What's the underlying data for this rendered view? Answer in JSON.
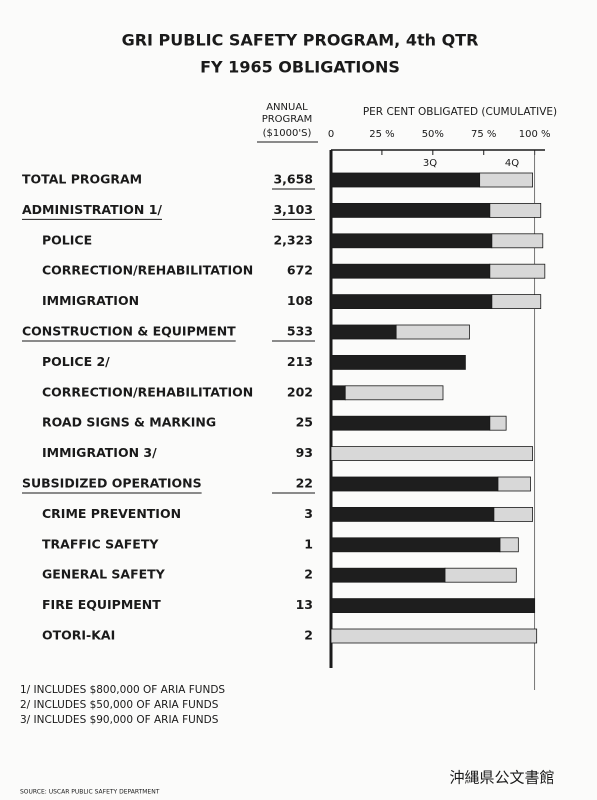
{
  "chart_data": {
    "type": "stacked-bar",
    "title": [
      "GRI PUBLIC SAFETY PROGRAM, 4th QTR",
      "FY 1965 OBLIGATIONS"
    ],
    "table_header": [
      "ANNUAL",
      "PROGRAM",
      "($1000'S)"
    ],
    "x_label": "PER CENT OBLIGATED (CUMULATIVE)",
    "categories": [
      "TOTAL PROGRAM",
      "ADMINISTRATION 1/",
      "POLICE",
      "CORRECTION/REHABILITATION",
      "IMMIGRATION",
      "CONSTRUCTION & EQUIPMENT",
      "POLICE 2/",
      "CORRECTION/REHABILITATION",
      "ROAD SIGNS & MARKING",
      "IMMIGRATION 3/",
      "SUBSIDIZED OPERATIONS",
      "CRIME PREVENTION",
      "TRAFFIC SAFETY",
      "GENERAL SAFETY",
      "FIRE EQUIPMENT",
      "OTORI-KAI"
    ],
    "annual_program": {
      "values": [
        3658,
        3103,
        2323,
        672,
        108,
        533,
        213,
        202,
        25,
        93,
        22,
        3,
        1,
        2,
        13,
        2
      ],
      "value_labels": [
        "3,658",
        "3,103",
        "2,323",
        "672",
        "108",
        "533",
        "213",
        "202",
        "25",
        "93",
        "22",
        "3",
        "1",
        "2",
        "13",
        "2"
      ]
    },
    "series": [
      {
        "name": "3Q",
        "color": "#1e1e1e",
        "values": [
          73,
          78,
          79,
          78,
          79,
          32,
          66,
          7,
          78,
          0,
          82,
          80,
          83,
          56,
          100,
          0
        ]
      },
      {
        "name": "4Q",
        "color": "#d8d8d8",
        "values": [
          26,
          25,
          25,
          27,
          24,
          36,
          0,
          48,
          8,
          99,
          16,
          19,
          9,
          35,
          0,
          101
        ]
      }
    ],
    "xlim": [
      0,
      110
    ],
    "xticks": [
      0,
      {
        "value": 25,
        "label": "25 %"
      },
      {
        "value": 50,
        "label": "50%"
      },
      {
        "value": 75,
        "label": "75 %"
      },
      {
        "value": 100,
        "label": "100 %"
      }
    ],
    "notes": [
      "1/ INCLUDES $800,000 OF ARIA FUNDS",
      "2/ INCLUDES $50,000 OF ARIA FUNDS",
      "3/ INCLUDES $90,000 OF ARIA FUNDS"
    ],
    "source": "SOURCE: USCAR PUBLIC SAFETY DEPARTMENT",
    "stamp": "沖縄県公文書館"
  }
}
